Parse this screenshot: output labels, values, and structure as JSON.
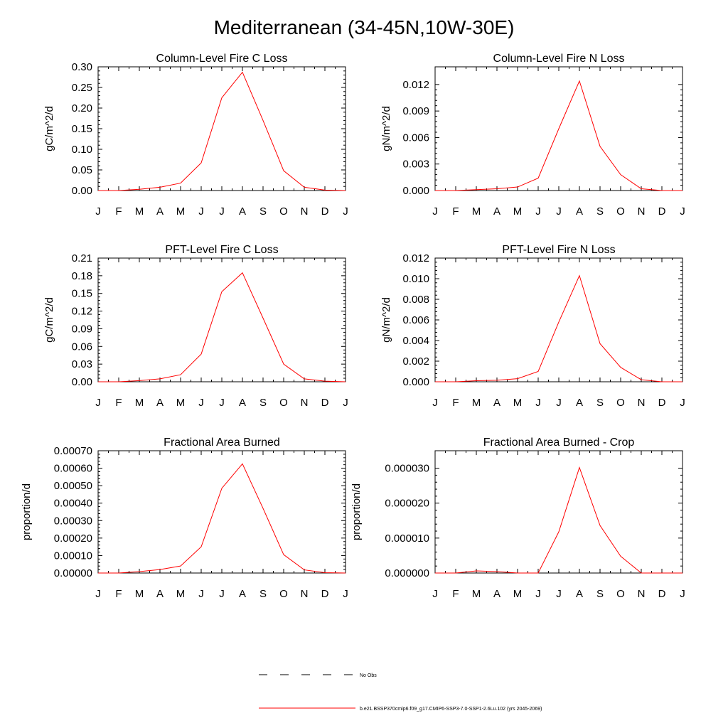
{
  "figure_title": "Mediterranean (34-45N,10W-30E)",
  "months": [
    "J",
    "F",
    "M",
    "A",
    "M",
    "J",
    "J",
    "A",
    "S",
    "O",
    "N",
    "D",
    "J"
  ],
  "legend": {
    "entries": [
      {
        "label": "No Obs",
        "color": "#000000",
        "style": "dashed"
      },
      {
        "label": "b.e21.BSSP370cmip6.f09_g17.CMIP6-SSP3-7.0-SSP1-2.6Lu.102 (yrs 2045-2069)",
        "color": "#ff0000",
        "style": "solid"
      }
    ]
  },
  "chart_data": [
    {
      "type": "line",
      "title": "Column-Level Fire C Loss",
      "ylabel": "gC/m^2/d",
      "ylim": [
        0,
        0.3
      ],
      "yticks": [
        "0.00",
        "0.05",
        "0.10",
        "0.15",
        "0.20",
        "0.25",
        "0.30"
      ],
      "x": [
        1,
        2,
        3,
        4,
        5,
        6,
        7,
        8,
        9,
        10,
        11,
        12,
        13
      ],
      "series": [
        {
          "color": "#ff0000",
          "values": [
            0.0,
            0.0,
            0.003,
            0.008,
            0.018,
            0.067,
            0.225,
            0.287,
            0.17,
            0.048,
            0.008,
            0.001,
            0.0
          ]
        }
      ]
    },
    {
      "type": "line",
      "title": "Column-Level Fire N Loss",
      "ylabel": "gN/m^2/d",
      "ylim": [
        0,
        0.014
      ],
      "yticks": [
        "0.000",
        "0.003",
        "0.006",
        "0.009",
        "0.012"
      ],
      "x": [
        1,
        2,
        3,
        4,
        5,
        6,
        7,
        8,
        9,
        10,
        11,
        12,
        13
      ],
      "series": [
        {
          "color": "#ff0000",
          "values": [
            0.0,
            0.0,
            0.0001,
            0.0002,
            0.0004,
            0.0014,
            0.007,
            0.0124,
            0.005,
            0.0018,
            0.0002,
            0.0,
            0.0
          ]
        }
      ]
    },
    {
      "type": "line",
      "title": "PFT-Level Fire C Loss",
      "ylabel": "gC/m^2/d",
      "ylim": [
        0,
        0.21
      ],
      "yticks": [
        "0.00",
        "0.03",
        "0.06",
        "0.09",
        "0.12",
        "0.15",
        "0.18",
        "0.21"
      ],
      "x": [
        1,
        2,
        3,
        4,
        5,
        6,
        7,
        8,
        9,
        10,
        11,
        12,
        13
      ],
      "series": [
        {
          "color": "#ff0000",
          "values": [
            0.0,
            0.0,
            0.002,
            0.005,
            0.012,
            0.047,
            0.153,
            0.185,
            0.108,
            0.03,
            0.005,
            0.001,
            0.0
          ]
        }
      ]
    },
    {
      "type": "line",
      "title": "PFT-Level Fire N Loss",
      "ylabel": "gN/m^2/d",
      "ylim": [
        0,
        0.012
      ],
      "yticks": [
        "0.000",
        "0.002",
        "0.004",
        "0.006",
        "0.008",
        "0.010",
        "0.012"
      ],
      "x": [
        1,
        2,
        3,
        4,
        5,
        6,
        7,
        8,
        9,
        10,
        11,
        12,
        13
      ],
      "series": [
        {
          "color": "#ff0000",
          "values": [
            0.0,
            0.0,
            0.0001,
            0.00015,
            0.0003,
            0.001,
            0.0058,
            0.0103,
            0.0037,
            0.0014,
            0.0002,
            0.0,
            0.0
          ]
        }
      ]
    },
    {
      "type": "line",
      "title": "Fractional Area Burned",
      "ylabel": "proportion/d",
      "ylim": [
        0,
        0.0007
      ],
      "yticks": [
        "0.00000",
        "0.00010",
        "0.00020",
        "0.00030",
        "0.00040",
        "0.00050",
        "0.00060",
        "0.00070"
      ],
      "x": [
        1,
        2,
        3,
        4,
        5,
        6,
        7,
        8,
        9,
        10,
        11,
        12,
        13
      ],
      "series": [
        {
          "color": "#ff0000",
          "values": [
            0.0,
            0.0,
            8e-06,
            2e-05,
            4e-05,
            0.00015,
            0.000485,
            0.000625,
            0.00037,
            0.000105,
            1.8e-05,
            2e-06,
            0.0
          ]
        }
      ]
    },
    {
      "type": "line",
      "title": "Fractional Area Burned - Crop",
      "ylabel": "proportion/d",
      "ylim": [
        0,
        3.5e-05
      ],
      "yticks": [
        "0.000000",
        "0.000010",
        "0.000020",
        "0.000030"
      ],
      "x": [
        1,
        2,
        3,
        4,
        5,
        6,
        7,
        8,
        9,
        10,
        11,
        12,
        13
      ],
      "series": [
        {
          "color": "#ff0000",
          "values": [
            0.0,
            0.0,
            6e-07,
            4e-07,
            0.0,
            0.0,
            1.18e-05,
            3.02e-05,
            1.36e-05,
            4.8e-06,
            0.0,
            0.0,
            0.0
          ]
        }
      ]
    }
  ]
}
